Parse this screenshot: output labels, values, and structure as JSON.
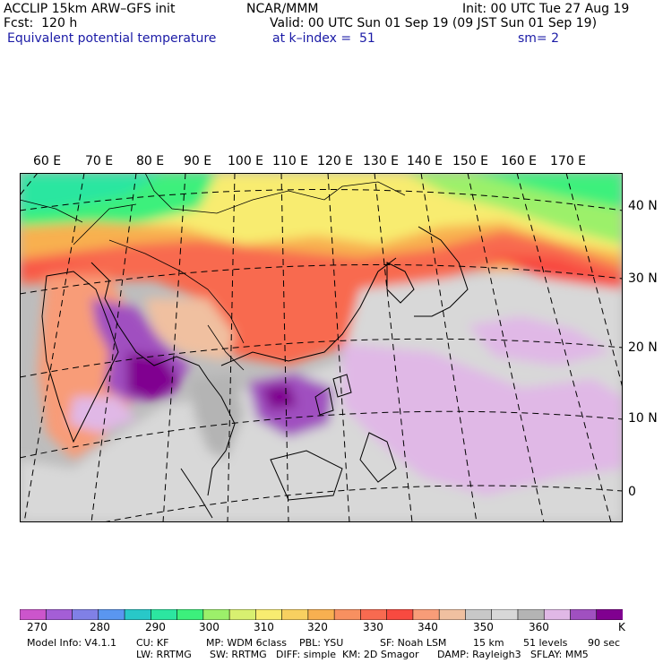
{
  "header": {
    "model": "ACCLIP 15km ARW–GFS init",
    "center": "NCAR/MMM",
    "init": "Init: 00 UTC Tue 27 Aug 19",
    "fcst": "Fcst:  120 h",
    "valid": "Valid: 00 UTC Sun 01 Sep 19 (09 JST Sun 01 Sep 19)",
    "field": "Equivalent potential temperature",
    "level": "at k–index =  51",
    "smooth": "sm= 2"
  },
  "map": {
    "lon_labels": [
      "60 E",
      "70 E",
      "80 E",
      "90 E",
      "100 E",
      "110 E",
      "120 E",
      "130 E",
      "140 E",
      "150 E",
      "160 E",
      "170 E"
    ],
    "lat_labels": [
      "40 N",
      "30 N",
      "20 N",
      "10 N",
      "0"
    ]
  },
  "colorbar": {
    "colors": [
      "#cc55cc",
      "#a45ed6",
      "#8080e6",
      "#5a96f0",
      "#28c8c8",
      "#2ce6a0",
      "#3cf07c",
      "#9cf06a",
      "#d8f070",
      "#f8ec70",
      "#f8d060",
      "#f8b050",
      "#f89060",
      "#f86a50",
      "#f84a40",
      "#f89c78",
      "#f0c0a0",
      "#c8c8c8",
      "#d8d8d8",
      "#b4b4b4",
      "#e0b8e6",
      "#a050c0",
      "#800090"
    ],
    "labels": [
      "270",
      "280",
      "290",
      "300",
      "310",
      "320",
      "330",
      "340",
      "350",
      "360"
    ],
    "unit": "K"
  },
  "footer": {
    "model_info": "Model Info: V4.1.1",
    "cu": "CU: KF",
    "mp": "MP: WDM 6class",
    "pbl": "PBL: YSU",
    "sf": "SF: Noah LSM",
    "res": "15 km",
    "levels": "51 levels",
    "dt": "90 sec",
    "lw": "LW: RRTMG",
    "sw": "SW: RRTMG",
    "diff": "DIFF: simple",
    "km": "KM: 2D Smagor",
    "damp": "DAMP: Rayleigh3",
    "sflay": "SFLAY: MM5"
  }
}
